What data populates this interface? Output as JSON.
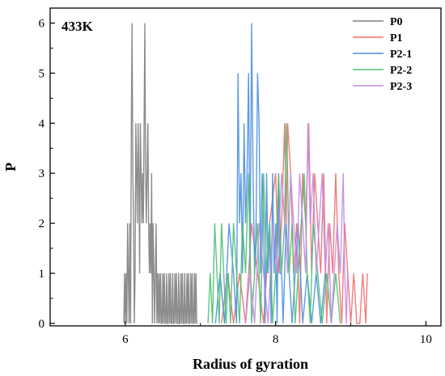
{
  "chart_data": {
    "type": "line",
    "annotation": "433K",
    "xlabel": "Radius of gyration",
    "ylabel": "P",
    "xlim": [
      5,
      10.2
    ],
    "ylim": [
      -0.05,
      6.3
    ],
    "xticks": [
      6,
      8,
      10
    ],
    "yticks": [
      0,
      1,
      2,
      3,
      4,
      5,
      6
    ],
    "legend_position": "top-right",
    "series": [
      {
        "name": "P0",
        "color": "#808080",
        "x": [
          5.98,
          5.99,
          6.0,
          6.01,
          6.02,
          6.03,
          6.04,
          6.05,
          6.06,
          6.07,
          6.08,
          6.09,
          6.1,
          6.11,
          6.12,
          6.13,
          6.14,
          6.15,
          6.16,
          6.17,
          6.18,
          6.19,
          6.2,
          6.21,
          6.22,
          6.23,
          6.24,
          6.25,
          6.26,
          6.27,
          6.28,
          6.29,
          6.3,
          6.31,
          6.32,
          6.33,
          6.34,
          6.35,
          6.36,
          6.37,
          6.38,
          6.39,
          6.4,
          6.41,
          6.42,
          6.43,
          6.44,
          6.45,
          6.46,
          6.47,
          6.48,
          6.49,
          6.5,
          6.51,
          6.52,
          6.53,
          6.54,
          6.55,
          6.56,
          6.57,
          6.58,
          6.59,
          6.6,
          6.61,
          6.62,
          6.63,
          6.64,
          6.65,
          6.66,
          6.67,
          6.68,
          6.69,
          6.7,
          6.71,
          6.72,
          6.73,
          6.74,
          6.75,
          6.76,
          6.77,
          6.78,
          6.79,
          6.8,
          6.81,
          6.82,
          6.83,
          6.84,
          6.85,
          6.86,
          6.87,
          6.88,
          6.89,
          6.9,
          6.91,
          6.92,
          6.93,
          6.94,
          6.95,
          6.96
        ],
        "y": [
          0,
          1,
          0,
          1,
          0,
          2,
          1,
          0,
          2,
          0,
          4,
          6,
          3,
          2,
          0,
          1,
          4,
          3,
          2,
          4,
          3,
          1,
          4,
          3,
          2,
          3,
          2,
          4,
          6,
          3,
          2,
          3,
          4,
          2,
          1,
          2,
          1,
          3,
          0,
          2,
          1,
          0,
          1,
          2,
          0,
          1,
          0,
          1,
          0,
          1,
          0,
          0,
          1,
          0,
          1,
          0,
          0,
          1,
          0,
          0,
          1,
          0,
          1,
          0,
          0,
          1,
          0,
          0,
          1,
          0,
          1,
          0,
          0,
          1,
          0,
          0,
          1,
          0,
          1,
          0,
          0,
          1,
          0,
          0,
          1,
          0,
          1,
          0,
          0,
          1,
          0,
          1,
          0,
          0,
          1,
          0,
          1,
          0,
          0
        ]
      },
      {
        "name": "P1",
        "color": "#f06e6e",
        "x": [
          7.28,
          7.36,
          7.44,
          7.52,
          7.6,
          7.68,
          7.76,
          7.84,
          7.92,
          8.0,
          8.04,
          8.08,
          8.12,
          8.14,
          8.16,
          8.2,
          8.24,
          8.28,
          8.32,
          8.36,
          8.4,
          8.44,
          8.48,
          8.52,
          8.56,
          8.6,
          8.64,
          8.68,
          8.72,
          8.76,
          8.8,
          8.84,
          8.88,
          8.92,
          8.96,
          9.0,
          9.04,
          9.08,
          9.12,
          9.16,
          9.2,
          9.22
        ],
        "y": [
          0,
          1,
          0,
          1,
          0,
          2,
          1,
          0,
          2,
          3,
          1,
          2,
          4,
          2,
          4,
          3,
          1,
          2,
          0,
          3,
          2,
          4,
          1,
          3,
          2,
          1,
          3,
          0,
          2,
          1,
          3,
          1,
          0,
          2,
          1,
          0,
          1,
          0,
          0,
          1,
          0,
          1
        ]
      },
      {
        "name": "P2-1",
        "color": "#4a8fe0",
        "x": [
          7.2,
          7.26,
          7.32,
          7.38,
          7.44,
          7.48,
          7.5,
          7.52,
          7.54,
          7.56,
          7.58,
          7.6,
          7.62,
          7.64,
          7.66,
          7.68,
          7.7,
          7.72,
          7.74,
          7.76,
          7.78,
          7.8,
          7.82,
          7.84,
          7.86,
          7.88,
          7.9,
          7.92,
          7.94,
          7.96,
          7.98,
          8.0,
          8.02,
          8.04,
          8.06,
          8.08,
          8.1,
          8.14,
          8.18,
          8.22,
          8.26,
          8.3,
          8.36,
          8.42,
          8.48,
          8.54,
          8.6,
          8.66
        ],
        "y": [
          0,
          1,
          0,
          2,
          1,
          0,
          5,
          2,
          3,
          1,
          4,
          2,
          3,
          5,
          1,
          6,
          3,
          1,
          2,
          5,
          4,
          1,
          3,
          2,
          0,
          3,
          1,
          2,
          0,
          3,
          1,
          2,
          0,
          3,
          1,
          1,
          0,
          2,
          1,
          0,
          1,
          2,
          0,
          1,
          0,
          1,
          0,
          1
        ]
      },
      {
        "name": "P2-2",
        "color": "#4fbf72",
        "x": [
          7.1,
          7.13,
          7.16,
          7.19,
          7.22,
          7.25,
          7.28,
          7.31,
          7.34,
          7.37,
          7.4,
          7.44,
          7.48,
          7.52,
          7.56,
          7.6,
          7.64,
          7.68,
          7.72,
          7.76,
          7.8,
          7.84,
          7.88,
          7.92,
          7.96,
          8.0,
          8.04,
          8.08,
          8.12,
          8.14,
          8.16,
          8.18,
          8.22,
          8.26,
          8.3,
          8.34,
          8.38,
          8.42,
          8.46,
          8.5,
          8.56,
          8.62,
          8.68,
          8.74,
          8.8,
          8.86
        ],
        "y": [
          0,
          1,
          0,
          2,
          1,
          0,
          2,
          1,
          0,
          1,
          0,
          2,
          1,
          0,
          2,
          1,
          3,
          0,
          1,
          2,
          0,
          3,
          1,
          2,
          0,
          1,
          3,
          1,
          2,
          4,
          3,
          1,
          2,
          0,
          1,
          2,
          3,
          1,
          0,
          2,
          1,
          0,
          1,
          0,
          1,
          0
        ]
      },
      {
        "name": "P2-3",
        "color": "#c28be3",
        "x": [
          7.6,
          7.66,
          7.72,
          7.78,
          7.84,
          7.9,
          7.96,
          8.02,
          8.08,
          8.12,
          8.16,
          8.2,
          8.24,
          8.28,
          8.32,
          8.36,
          8.4,
          8.43,
          8.46,
          8.5,
          8.54,
          8.58,
          8.62,
          8.66,
          8.7,
          8.74,
          8.78,
          8.82,
          8.86,
          8.9,
          8.92,
          8.94,
          8.96
        ],
        "y": [
          0,
          1,
          0,
          2,
          1,
          0,
          2,
          1,
          3,
          2,
          1,
          3,
          2,
          1,
          3,
          2,
          1,
          4,
          2,
          3,
          1,
          2,
          3,
          1,
          2,
          0,
          1,
          2,
          1,
          3,
          1,
          0,
          1
        ]
      }
    ]
  }
}
